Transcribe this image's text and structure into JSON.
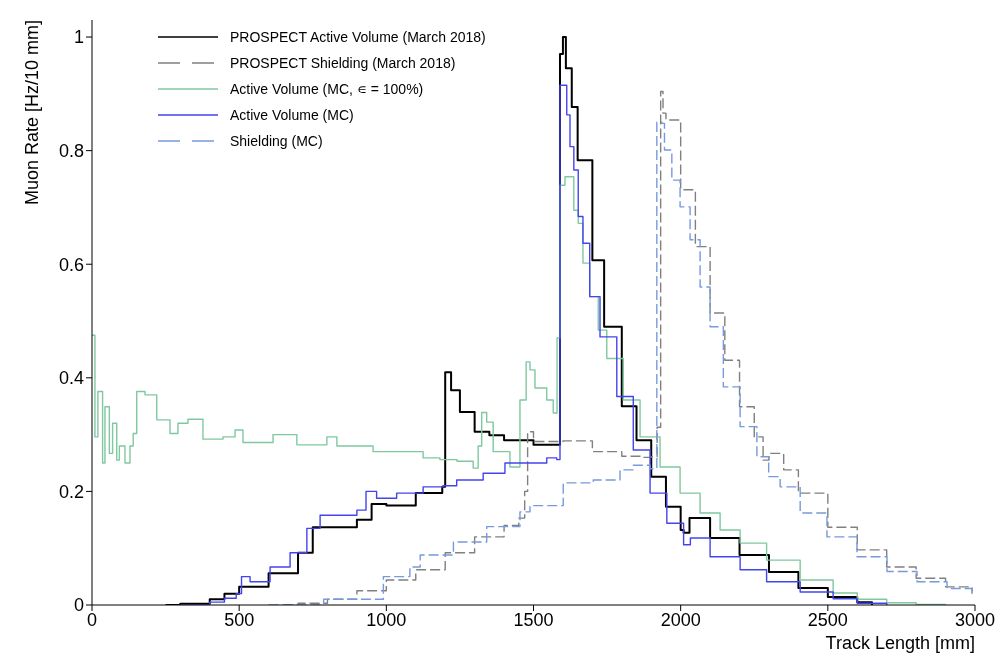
{
  "chart_data": {
    "type": "step",
    "xlabel": "Track Length [mm]",
    "ylabel": "Muon Rate [Hz/10 mm]",
    "xlim": [
      0,
      3000
    ],
    "ylim": [
      0,
      1.03
    ],
    "xticks": [
      0,
      500,
      1000,
      1500,
      2000,
      2500,
      3000
    ],
    "yticks": [
      0,
      0.2,
      0.4,
      0.6,
      0.8,
      1
    ],
    "legend": "top left",
    "series": [
      {
        "name": "PROSPECT Active Volume (March 2018)",
        "color": "#000000",
        "line_style": "solid",
        "x": [
          250,
          300,
          400,
          450,
          500,
          600,
          700,
          750,
          800,
          900,
          950,
          1000,
          1100,
          1190,
          1200,
          1220,
          1250,
          1300,
          1350,
          1400,
          1500,
          1590,
          1600,
          1610,
          1630,
          1650,
          1700,
          1740,
          1800,
          1850,
          1900,
          1950,
          2000,
          2010,
          2030,
          2100,
          2200,
          2300,
          2400,
          2500,
          2600,
          2650
        ],
        "values": [
          0,
          0.002,
          0.01,
          0.02,
          0.032,
          0.056,
          0.092,
          0.137,
          0.137,
          0.15,
          0.178,
          0.175,
          0.197,
          0.208,
          0.41,
          0.378,
          0.34,
          0.305,
          0.299,
          0.29,
          0.282,
          0.97,
          1.0,
          0.945,
          0.877,
          0.783,
          0.607,
          0.49,
          0.35,
          0.29,
          0.226,
          0.173,
          0.132,
          0.127,
          0.153,
          0.118,
          0.088,
          0.058,
          0.03,
          0.014,
          0.005,
          0
        ]
      },
      {
        "name": "PROSPECT Shielding (March 2018)",
        "color": "#808080",
        "line_style": "dashed",
        "x": [
          650,
          700,
          800,
          900,
          1000,
          1100,
          1200,
          1300,
          1400,
          1450,
          1470,
          1480,
          1500,
          1600,
          1700,
          1800,
          1870,
          1900,
          1920,
          1932,
          1940,
          1950,
          2000,
          2050,
          2100,
          2150,
          2200,
          2250,
          2280,
          2300,
          2350,
          2400,
          2500,
          2600,
          2700,
          2800,
          2900,
          2990
        ],
        "values": [
          0,
          0.003,
          0.01,
          0.025,
          0.044,
          0.062,
          0.092,
          0.12,
          0.14,
          0.153,
          0.2,
          0.305,
          0.288,
          0.289,
          0.27,
          0.262,
          0.26,
          0.261,
          0.313,
          0.904,
          0.866,
          0.854,
          0.731,
          0.631,
          0.514,
          0.431,
          0.349,
          0.296,
          0.255,
          0.267,
          0.238,
          0.197,
          0.137,
          0.097,
          0.067,
          0.047,
          0.032,
          0.02
        ]
      },
      {
        "name": "Active Volume (MC, ∊ = 100%)",
        "color": "#80c8a0",
        "line_style": "solid",
        "x": [
          0,
          10,
          20,
          36,
          44,
          59,
          70,
          84,
          93,
          112,
          129,
          140,
          152,
          180,
          220,
          265,
          292,
          326,
          377,
          445,
          486,
          513,
          615,
          696,
          798,
          832,
          900,
          955,
          1057,
          1125,
          1182,
          1240,
          1295,
          1312,
          1324,
          1341,
          1363,
          1420,
          1454,
          1475,
          1488,
          1505,
          1545,
          1567,
          1580,
          1590,
          1607,
          1637,
          1652,
          1668,
          1691,
          1720,
          1749,
          1805,
          1862,
          1930,
          1998,
          2066,
          2134,
          2202,
          2292,
          2406,
          2518,
          2600,
          2700,
          2800,
          2900
        ],
        "values": [
          0.475,
          0.296,
          0.376,
          0.25,
          0.349,
          0.267,
          0.32,
          0.255,
          0.28,
          0.25,
          0.28,
          0.302,
          0.376,
          0.37,
          0.326,
          0.302,
          0.32,
          0.327,
          0.292,
          0.296,
          0.308,
          0.286,
          0.3,
          0.282,
          0.296,
          0.28,
          0.28,
          0.27,
          0.27,
          0.259,
          0.256,
          0.253,
          0.241,
          0.28,
          0.339,
          0.322,
          0.27,
          0.243,
          0.361,
          0.428,
          0.414,
          0.382,
          0.361,
          0.338,
          0.47,
          0.739,
          0.754,
          0.695,
          0.672,
          0.602,
          0.543,
          0.484,
          0.434,
          0.361,
          0.296,
          0.243,
          0.197,
          0.162,
          0.132,
          0.109,
          0.079,
          0.044,
          0.021,
          0.01,
          0.004,
          0.001,
          0
        ]
      },
      {
        "name": "Active Volume (MC)",
        "color": "#4444ee",
        "line_style": "solid",
        "x": [
          300,
          400,
          450,
          490,
          508,
          537,
          605,
          673,
          730,
          775,
          843,
          900,
          931,
          967,
          1035,
          1125,
          1193,
          1239,
          1329,
          1403,
          1454,
          1545,
          1579,
          1590,
          1613,
          1624,
          1637,
          1652,
          1668,
          1691,
          1726,
          1783,
          1839,
          1896,
          1953,
          2010,
          2033,
          2100,
          2202,
          2292,
          2406,
          2518,
          2600,
          2700
        ],
        "values": [
          0,
          0.005,
          0.012,
          0.02,
          0.05,
          0.041,
          0.067,
          0.092,
          0.135,
          0.158,
          0.158,
          0.167,
          0.2,
          0.188,
          0.197,
          0.208,
          0.21,
          0.22,
          0.232,
          0.25,
          0.25,
          0.259,
          0.256,
          0.915,
          0.863,
          0.807,
          0.766,
          0.684,
          0.637,
          0.543,
          0.472,
          0.367,
          0.273,
          0.197,
          0.144,
          0.106,
          0.118,
          0.085,
          0.062,
          0.041,
          0.023,
          0.011,
          0.003,
          0
        ]
      },
      {
        "name": "Shielding (MC)",
        "color": "#7799dd",
        "line_style": "dashed",
        "x": [
          600,
          787,
          990,
          1080,
          1115,
          1228,
          1341,
          1454,
          1488,
          1601,
          1703,
          1794,
          1839,
          1896,
          1919,
          1936,
          1945,
          1970,
          1998,
          2032,
          2066,
          2100,
          2145,
          2202,
          2259,
          2299,
          2338,
          2406,
          2497,
          2599,
          2701,
          2803,
          2905,
          2990
        ],
        "values": [
          0,
          0.01,
          0.05,
          0.067,
          0.088,
          0.111,
          0.138,
          0.164,
          0.175,
          0.215,
          0.22,
          0.238,
          0.246,
          0.24,
          0.85,
          0.848,
          0.801,
          0.748,
          0.701,
          0.643,
          0.56,
          0.49,
          0.384,
          0.314,
          0.261,
          0.226,
          0.208,
          0.162,
          0.12,
          0.085,
          0.059,
          0.041,
          0.029,
          0.02
        ]
      }
    ]
  }
}
